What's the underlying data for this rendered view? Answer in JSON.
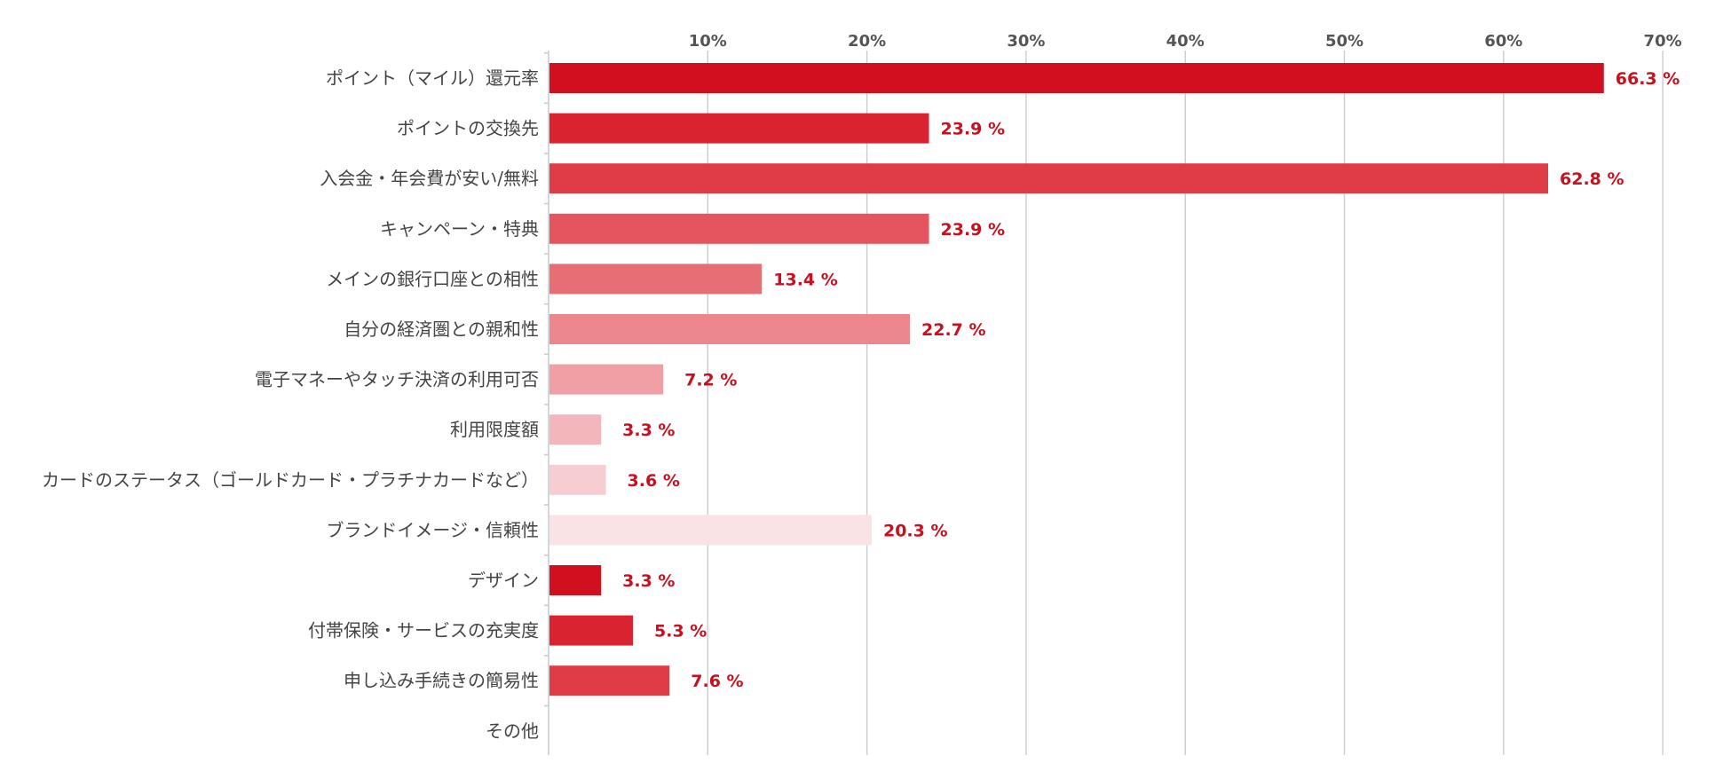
{
  "chart_data": {
    "type": "bar",
    "orientation": "horizontal",
    "categories": [
      "ポイント（マイル）還元率",
      "ポイントの交換先",
      "入会金・年会費が安い/無料",
      "キャンペーン・特典",
      "メインの銀行口座との相性",
      "自分の経済圏との親和性",
      "電子マネーやタッチ決済の利用可否",
      "利用限度額",
      "カードのステータス（ゴールドカード・プラチナカードなど）",
      "ブランドイメージ・信頼性",
      "デザイン",
      "付帯保険・サービスの充実度",
      "申し込み手続きの簡易性",
      "その他"
    ],
    "values": [
      66.3,
      23.9,
      62.8,
      23.9,
      13.4,
      22.7,
      7.2,
      3.3,
      3.6,
      20.3,
      3.3,
      5.3,
      7.6,
      0
    ],
    "value_labels": [
      "66.3 %",
      "23.9 %",
      "62.8 %",
      "23.9 %",
      "13.4 %",
      "22.7 %",
      "7.2 %",
      "3.3 %",
      "3.6 %",
      "20.3 %",
      "3.3 %",
      "5.3 %",
      "7.6 %",
      ""
    ],
    "colors": [
      "#d20f1e",
      "#da2330",
      "#df3c48",
      "#e55560",
      "#e86e76",
      "#ec878d",
      "#f0a0a5",
      "#f3b7bb",
      "#f6cdd1",
      "#fae3e5",
      "#d20f1e",
      "#da2330",
      "#df3c48",
      "#e55560"
    ],
    "xaxis": {
      "position": "top",
      "ticks": [
        10,
        20,
        30,
        40,
        50,
        60,
        70
      ],
      "tick_labels": [
        "10%",
        "20%",
        "30%",
        "40%",
        "50%",
        "60%",
        "70%"
      ],
      "xlim": [
        0,
        70
      ]
    },
    "grid": true,
    "title": "",
    "xlabel": "",
    "ylabel": ""
  }
}
